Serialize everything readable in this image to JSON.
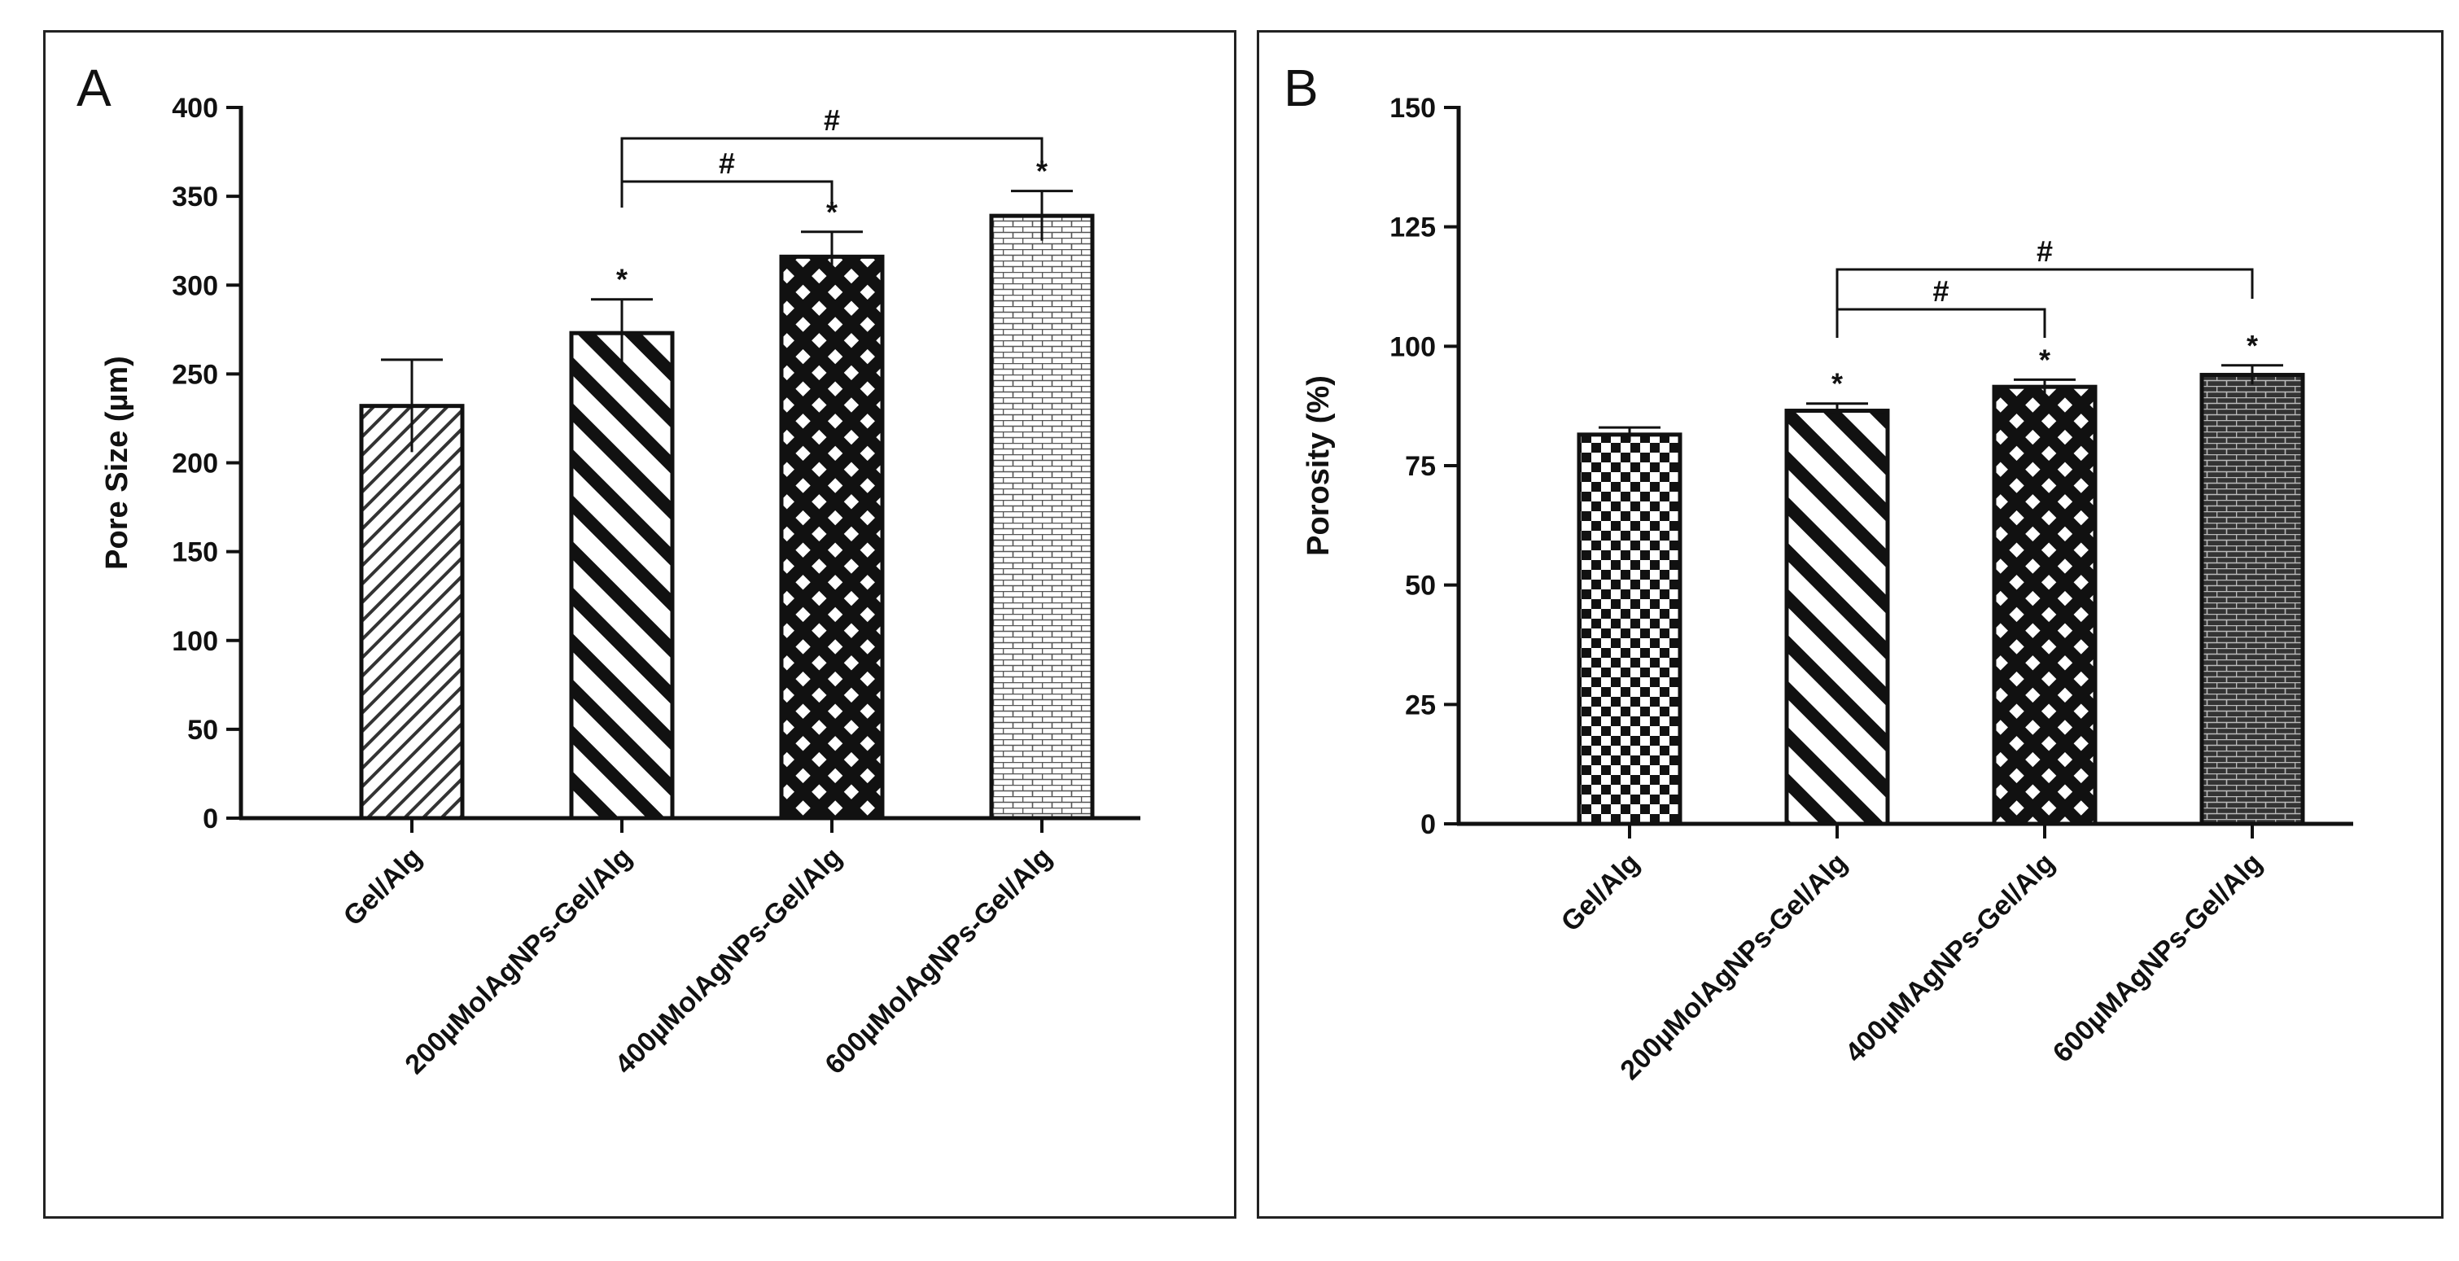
{
  "chart_data": [
    {
      "panel": "A",
      "type": "bar",
      "title": "",
      "xlabel": "",
      "ylabel": "Pore Size (µm)",
      "ylim": [
        0,
        400
      ],
      "yticks": [
        "0",
        "50",
        "100",
        "150",
        "200",
        "250",
        "300",
        "350",
        "400"
      ],
      "categories": [
        "Gel/Alg",
        "200µMolAgNPs-Gel/Alg",
        "400µMolAgNPs-Gel/Alg",
        "600µMolAgNPs-Gel/Alg"
      ],
      "values": [
        232,
        273,
        316,
        339
      ],
      "errors": [
        26,
        19,
        14,
        14
      ],
      "patterns": [
        "diag-fine",
        "diag-bold",
        "crosshatch",
        "brick-light"
      ],
      "bar_marks": [
        "",
        "*",
        "*",
        "*"
      ],
      "brackets": [
        {
          "from": 1,
          "to": 2,
          "label": "#"
        },
        {
          "from": 1,
          "to": 3,
          "label": "#"
        }
      ]
    },
    {
      "panel": "B",
      "type": "bar",
      "title": "",
      "xlabel": "",
      "ylabel": "Porosity (%)",
      "ylim": [
        0,
        150
      ],
      "yticks": [
        "0",
        "25",
        "50",
        "75",
        "100",
        "125",
        "150"
      ],
      "categories": [
        "Gel/Alg",
        "200µMolAgNPs-Gel/Alg",
        "400µMAgNPs-Gel/Alg",
        "600µMAgNPs-Gel/Alg"
      ],
      "values": [
        81.5,
        86.5,
        91.5,
        94
      ],
      "errors": [
        1.5,
        1.5,
        1.5,
        2
      ],
      "patterns": [
        "checker",
        "diag-bold",
        "crosshatch",
        "brick-dark"
      ],
      "bar_marks": [
        "",
        "*",
        "*",
        "*"
      ],
      "brackets": [
        {
          "from": 1,
          "to": 2,
          "label": "#"
        },
        {
          "from": 1,
          "to": 3,
          "label": "#"
        }
      ]
    }
  ]
}
